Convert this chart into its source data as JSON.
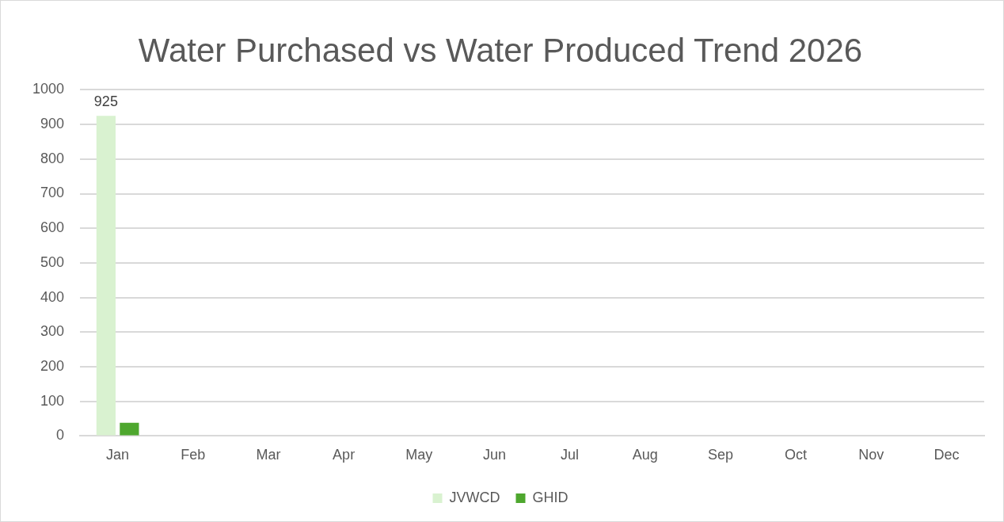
{
  "chart_data": {
    "type": "bar",
    "title": "Water Purchased vs Water Produced Trend 2026",
    "categories": [
      "Jan",
      "Feb",
      "Mar",
      "Apr",
      "May",
      "Jun",
      "Jul",
      "Aug",
      "Sep",
      "Oct",
      "Nov",
      "Dec"
    ],
    "series": [
      {
        "name": "JVWCD",
        "color": "#d9f2d0",
        "values": [
          925,
          null,
          null,
          null,
          null,
          null,
          null,
          null,
          null,
          null,
          null,
          null
        ],
        "value_labels": [
          "925",
          null,
          null,
          null,
          null,
          null,
          null,
          null,
          null,
          null,
          null,
          null
        ]
      },
      {
        "name": "GHID",
        "color": "#4ea72e",
        "values": [
          38,
          null,
          null,
          null,
          null,
          null,
          null,
          null,
          null,
          null,
          null,
          null
        ]
      }
    ],
    "ylim": [
      0,
      1000
    ],
    "yticks": [
      0,
      100,
      200,
      300,
      400,
      500,
      600,
      700,
      800,
      900,
      1000
    ],
    "grid": "y",
    "legend": "bottom"
  }
}
